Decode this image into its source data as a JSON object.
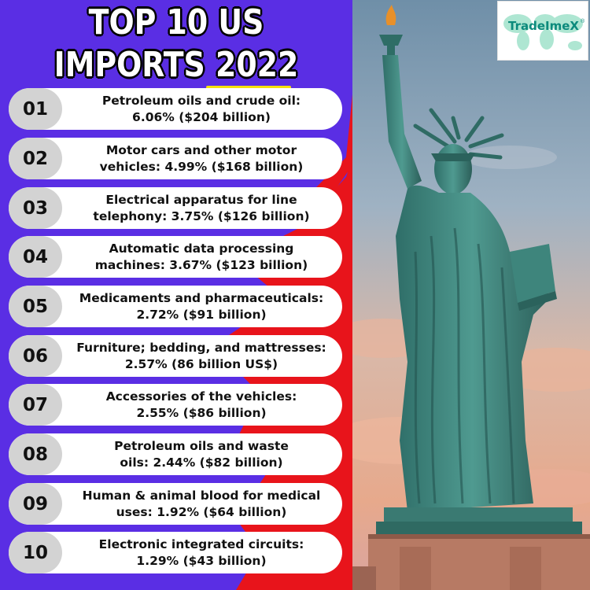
{
  "title": {
    "line1": "TOP 10 US",
    "line2": "IMPORTS 2022"
  },
  "logo": {
    "text": "TradeImeX",
    "registered": "®"
  },
  "items": [
    {
      "number": "01",
      "line1": "Petroleum oils  and crude oil:",
      "line2": "6.06% ($204 billion)"
    },
    {
      "number": "02",
      "line1": "Motor cars and other motor",
      "line2": "vehicles: 4.99% ($168 billion)"
    },
    {
      "number": "03",
      "line1": "Electrical apparatus for line",
      "line2": "telephony: 3.75% ($126 billion)"
    },
    {
      "number": "04",
      "line1": "Automatic data processing",
      "line2": "machines: 3.67% ($123 billion)"
    },
    {
      "number": "05",
      "line1": "Medicaments and pharmaceuticals:",
      "line2": "2.72% ($91 billion)"
    },
    {
      "number": "06",
      "line1": "Furniture; bedding, and mattresses:",
      "line2": "2.57% (86 billion US$)"
    },
    {
      "number": "07",
      "line1": "Accessories of the vehicles:",
      "line2": "2.55% ($86 billion)"
    },
    {
      "number": "08",
      "line1": "Petroleum oils and waste",
      "line2": "oils: 2.44% ($82 billion)"
    },
    {
      "number": "09",
      "line1": "Human & animal blood for medical",
      "line2": "uses: 1.92% ($64 billion)"
    },
    {
      "number": "10",
      "line1": "Electronic integrated circuits:",
      "line2": "1.29% ($43 billion)"
    }
  ],
  "colors": {
    "purple": "#5a2ee4",
    "red": "#e8141b",
    "title_underline": "#f4e10c",
    "logo_green": "#0c8a7c",
    "number_pill": "#d3d3d3"
  }
}
